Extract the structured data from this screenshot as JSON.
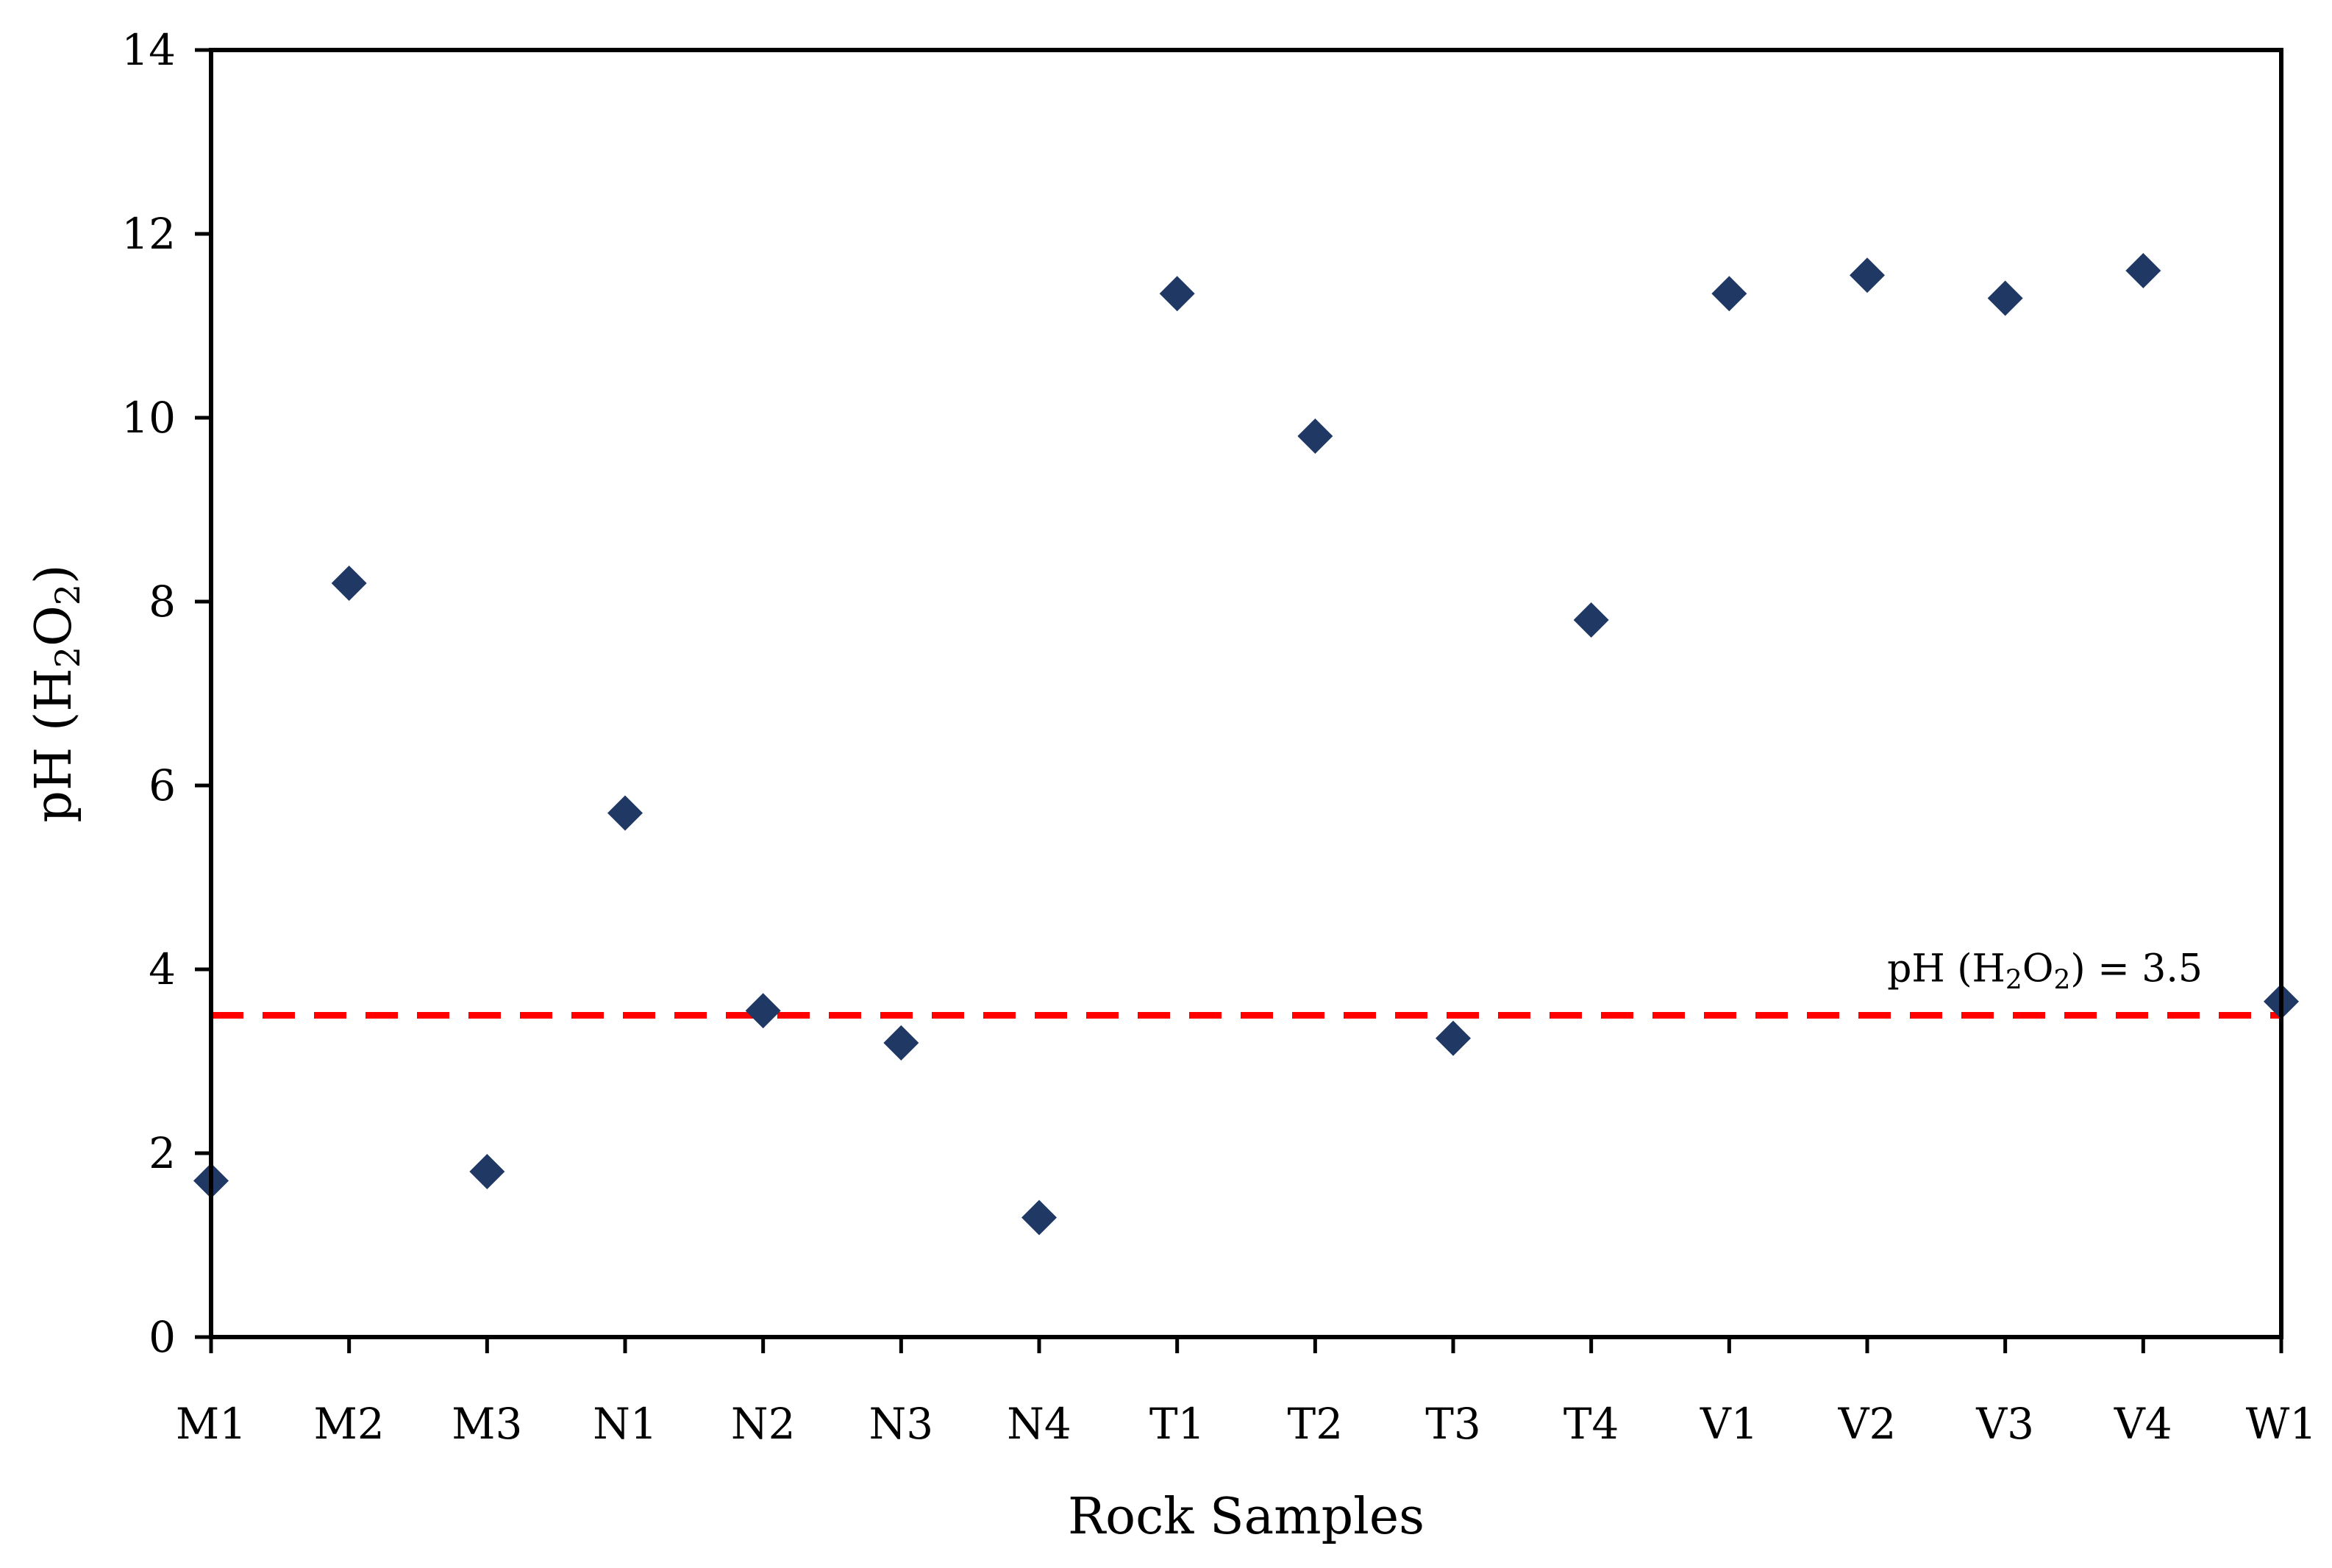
{
  "chart_data": {
    "type": "scatter",
    "title": "",
    "xlabel": "Rock Samples",
    "ylabel": {
      "prefix": "pH (H",
      "sub1": "2",
      "mid": "O",
      "sub2": "2",
      "suffix": ")"
    },
    "categories": [
      "M1",
      "M2",
      "M3",
      "N1",
      "N2",
      "N3",
      "N4",
      "T1",
      "T2",
      "T3",
      "T4",
      "V1",
      "V2",
      "V3",
      "V4",
      "W1"
    ],
    "series": [
      {
        "values": [
          1.7,
          8.2,
          1.8,
          5.7,
          3.55,
          3.2,
          1.3,
          11.35,
          9.8,
          3.25,
          7.8,
          11.35,
          11.55,
          11.3,
          11.6,
          3.65
        ]
      }
    ],
    "ylim": [
      0,
      14
    ],
    "yticks": [
      "0",
      "2",
      "4",
      "6",
      "8",
      "10",
      "12",
      "14"
    ],
    "grid": false,
    "reference_line": {
      "value": 3.5,
      "label": {
        "prefix": "pH (H",
        "sub1": "2",
        "mid": "O",
        "sub2": "2",
        "suffix": ") = 3.5"
      },
      "style": "dashed"
    },
    "colors": {
      "marker": "#1F3864",
      "reference_line": "#FF0000",
      "axis": "#000000"
    }
  }
}
